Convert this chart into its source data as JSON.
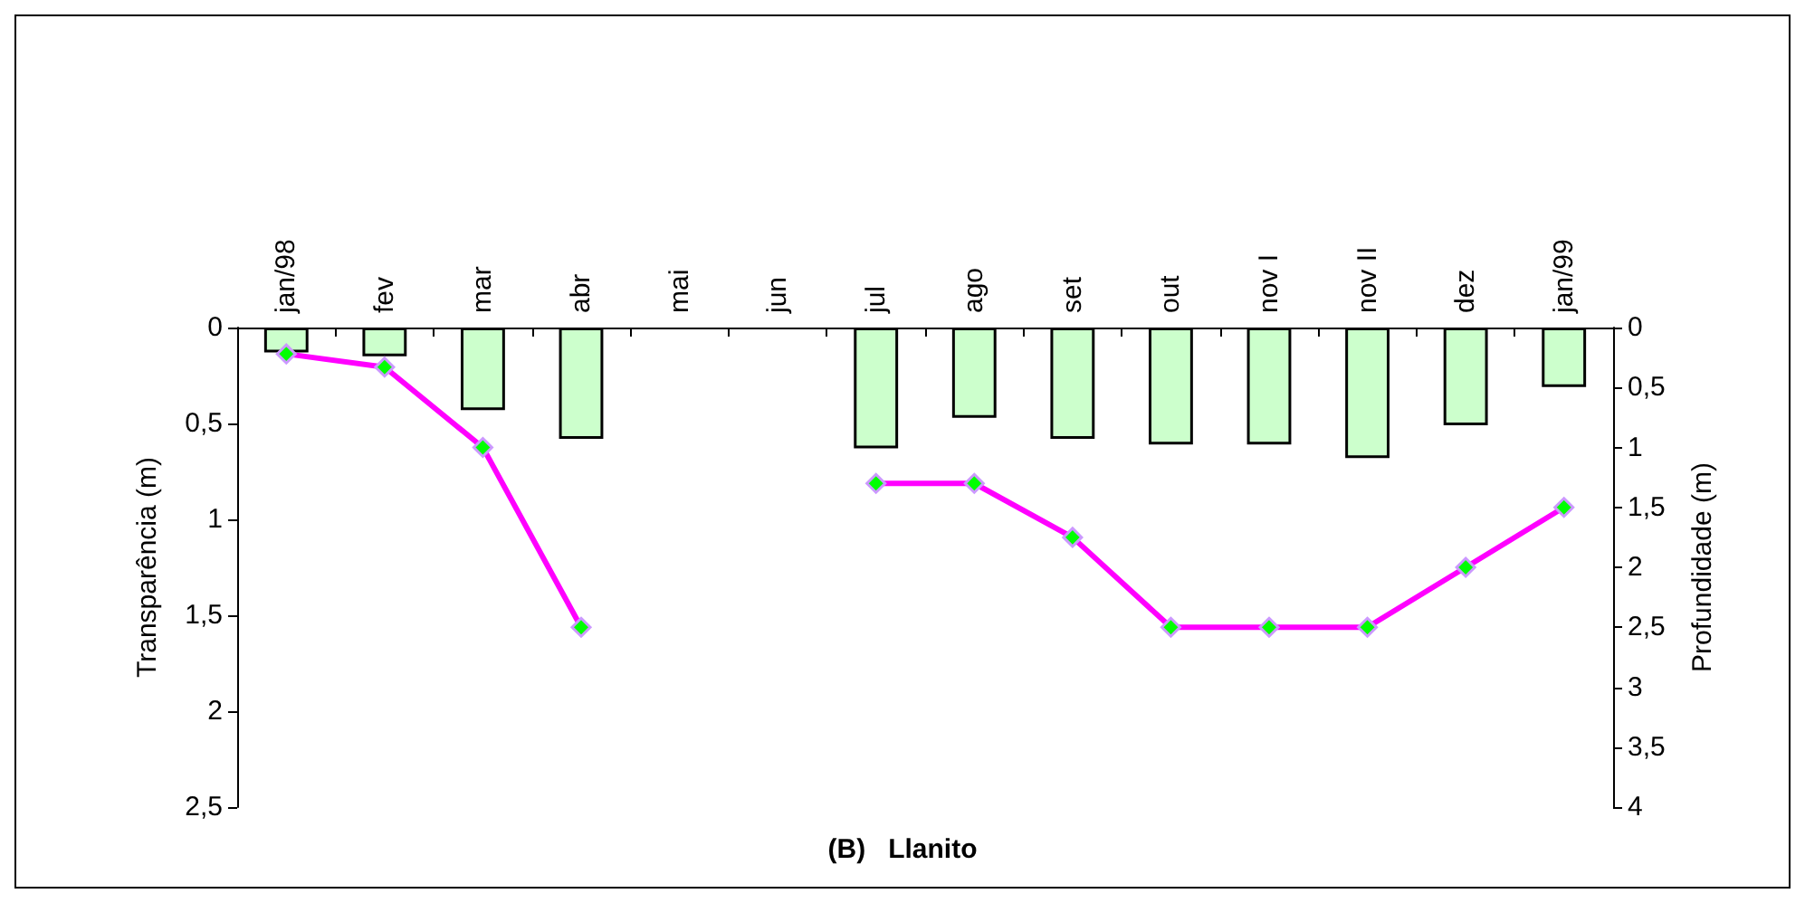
{
  "chart_data": {
    "type": "bar",
    "title": "(B)   Llanito",
    "ylabel": "Transparência (m)",
    "y2label": "Profundidade (m)",
    "categories": [
      "jan/98",
      "fev",
      "mar",
      "abr",
      "mai",
      "jun",
      "jul",
      "ago",
      "set",
      "out",
      "nov I",
      "nov II",
      "dez",
      "jan/99"
    ],
    "series": [
      {
        "color": "#ccffcc",
        "values": [
          0.13,
          0.15,
          0.43,
          0.58,
          null,
          null,
          0.63,
          0.47,
          0.58,
          0.61,
          0.61,
          0.68,
          0.51,
          0.31
        ]
      },
      {
        "type": "line",
        "axis": "y2",
        "color": "#ff00ff",
        "marker": "diamond",
        "line_style": "solid",
        "values": [
          0.22,
          0.33,
          1.0,
          2.5,
          null,
          null,
          1.3,
          1.3,
          1.75,
          2.5,
          2.5,
          2.5,
          2.0,
          1.5
        ]
      }
    ],
    "ylim": [
      2.5,
      0
    ],
    "yticks": [
      0,
      {
        "value": 0.5,
        "label": "0,5"
      },
      1,
      {
        "value": 1.5,
        "label": "1,5"
      },
      2,
      {
        "value": 2.5,
        "label": "2,5"
      }
    ],
    "y2lim": [
      4,
      0
    ],
    "y2ticks": [
      0,
      {
        "value": 0.5,
        "label": "0,5"
      },
      1,
      {
        "value": 1.5,
        "label": "1,5"
      },
      2,
      {
        "value": 2.5,
        "label": "2,5"
      },
      3,
      {
        "value": 3.5,
        "label": "3,5"
      },
      4
    ],
    "grid": false
  }
}
